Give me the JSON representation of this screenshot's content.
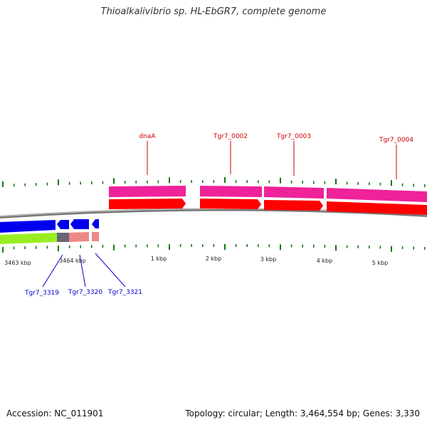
{
  "title": "Thioalkalivibrio sp. HL-EbGR7, complete genome",
  "footer": {
    "accession": "Accession: NC_011901",
    "summary": "Topology: circular; Length: 3,464,554 bp; Genes: 3,330"
  },
  "scale_labels": [
    "3463 kbp",
    "3464 kbp",
    "1 kbp",
    "2 kbp",
    "3 kbp",
    "4 kbp",
    "5 kbp"
  ],
  "gene_labels_forward": [
    "dnaA",
    "Tgr7_0002",
    "Tgr7_0003",
    "Tgr7_0004"
  ],
  "gene_labels_reverse": [
    "Tgr7_3319",
    "Tgr7_3320",
    "Tgr7_3321"
  ],
  "colors": {
    "forward_label": "#cc0000",
    "reverse_label": "#0000cc",
    "cds_forward": "#ff0000",
    "gene_forward": "#ee2299",
    "cds_reverse": "#0000ee",
    "gene_reverse": "#99ee22",
    "backbone": "#777777",
    "ticks": "#117711"
  }
}
